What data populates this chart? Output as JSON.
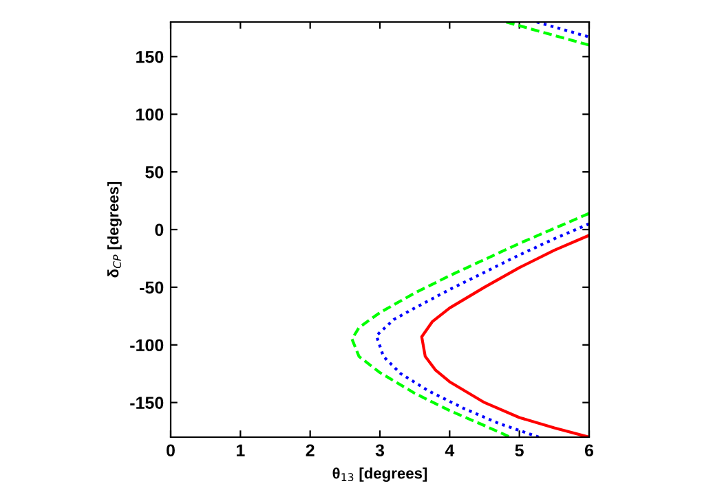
{
  "chart_data": {
    "type": "line",
    "xlabel": "θ$_{13}$ [degrees]",
    "ylabel": "δ$_{CP}$ [degrees]",
    "xlim": [
      0,
      6
    ],
    "ylim": [
      -180,
      180
    ],
    "xticks": [
      0,
      1,
      2,
      3,
      4,
      5,
      6
    ],
    "yticks": [
      -150,
      -100,
      -50,
      0,
      50,
      100,
      150
    ],
    "grid": false,
    "legend": false,
    "series": [
      {
        "color": "#ff0000",
        "line_style": "solid",
        "x": [
          6,
          5.5,
          5,
          4.5,
          4.0,
          3.75,
          3.6,
          3.65,
          3.8,
          4.0,
          4.5,
          5.0,
          5.5,
          6.0
        ],
        "values": [
          -5,
          -18,
          -33,
          -50,
          -68,
          -80,
          -93,
          -110,
          -122,
          -132,
          -150,
          -163,
          -172,
          -180
        ]
      },
      {
        "color": "#0000ff",
        "line_style": "dotted",
        "x": [
          6,
          5.5,
          5,
          4.5,
          4,
          3.5,
          3.2,
          2.95,
          3.05,
          3.3,
          3.7,
          4.2,
          4.7,
          5.28,
          null,
          5.25,
          6
        ],
        "values": [
          5,
          -8,
          -22,
          -37,
          -52,
          -68,
          -78,
          -92,
          -110,
          -125,
          -140,
          -155,
          -168,
          -180,
          null,
          180,
          167
        ]
      },
      {
        "color": "#00ff00",
        "line_style": "dashed",
        "x": [
          6,
          5.5,
          5,
          4.5,
          4,
          3.5,
          3,
          2.7,
          2.6,
          2.7,
          3,
          3.5,
          4,
          4.5,
          4.87,
          null,
          4.81,
          5.4,
          6
        ],
        "values": [
          14,
          1,
          -12,
          -26,
          -40,
          -55,
          -72,
          -85,
          -95,
          -110,
          -124,
          -142,
          -157,
          -170,
          -180,
          null,
          180,
          170,
          160
        ]
      }
    ]
  }
}
